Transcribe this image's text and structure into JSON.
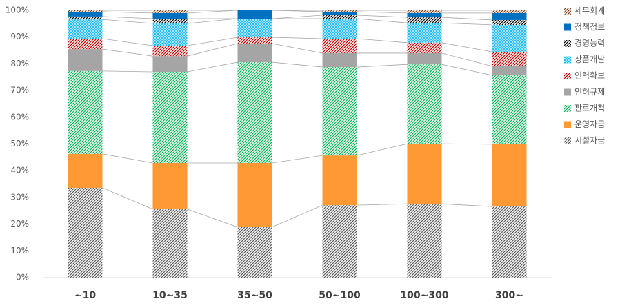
{
  "chart_data": {
    "type": "stacked_bar_100",
    "categories": [
      "~10",
      "10~35",
      "35~50",
      "50~100",
      "100~300",
      "300~"
    ],
    "series": [
      {
        "name": "시설자금",
        "color": "#595959",
        "pattern": "hatch",
        "values": [
          33.6,
          25.6,
          18.9,
          27.1,
          27.6,
          26.6
        ]
      },
      {
        "name": "운영자금",
        "color": "#ff9933",
        "pattern": "solid",
        "values": [
          12.7,
          17.3,
          24.0,
          18.6,
          22.5,
          23.3
        ]
      },
      {
        "name": "판로개척",
        "color": "#00b050",
        "pattern": "hatch",
        "values": [
          31.0,
          34.1,
          37.7,
          33.1,
          29.7,
          25.8
        ]
      },
      {
        "name": "인허규제",
        "color": "#a5a5a5",
        "pattern": "solid",
        "values": [
          8.2,
          5.9,
          7.0,
          5.2,
          4.2,
          3.4
        ]
      },
      {
        "name": "인력확보",
        "color": "#c00000",
        "pattern": "hatch",
        "values": [
          3.9,
          3.9,
          2.3,
          5.4,
          3.9,
          5.4
        ]
      },
      {
        "name": "상품개발",
        "color": "#00b0f0",
        "pattern": "dots",
        "values": [
          7.2,
          8.3,
          7.0,
          7.5,
          7.4,
          10.1
        ]
      },
      {
        "name": "경영능력",
        "color": "#000000",
        "pattern": "hatch",
        "values": [
          1.1,
          1.8,
          0,
          1.3,
          2.1,
          1.8
        ]
      },
      {
        "name": "정책정보",
        "color": "#0070c0",
        "pattern": "solid",
        "values": [
          1.8,
          2.1,
          3.1,
          1.3,
          1.6,
          2.6
        ]
      },
      {
        "name": "세무회계",
        "color": "#843c0c",
        "pattern": "hatch",
        "values": [
          0.5,
          1.0,
          0,
          0.5,
          1.0,
          1.0
        ]
      }
    ],
    "ylim": [
      0,
      100
    ],
    "yticks": [
      {
        "value": 0,
        "label": "0%"
      },
      {
        "value": 10,
        "label": "10%"
      },
      {
        "value": 20,
        "label": "20%"
      },
      {
        "value": 30,
        "label": "30%"
      },
      {
        "value": 40,
        "label": "40%"
      },
      {
        "value": 50,
        "label": "50%"
      },
      {
        "value": 60,
        "label": "60%"
      },
      {
        "value": 70,
        "label": "70%"
      },
      {
        "value": 80,
        "label": "80%"
      },
      {
        "value": 90,
        "label": "90%"
      },
      {
        "value": 100,
        "label": "100%"
      }
    ],
    "series_lines": true,
    "legend": "right"
  }
}
